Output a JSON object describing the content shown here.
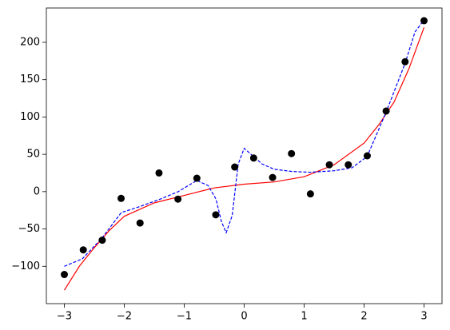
{
  "chart_data": {
    "type": "combo",
    "xlim": [
      -3.3,
      3.3
    ],
    "ylim": [
      -150,
      246
    ],
    "xticks": [
      {
        "value": -3,
        "label": "−3"
      },
      {
        "value": -2,
        "label": "−2"
      },
      {
        "value": -1,
        "label": "−1"
      },
      0,
      1,
      2,
      3
    ],
    "yticks": [
      {
        "value": -100,
        "label": "−100"
      },
      {
        "value": -50,
        "label": "−50"
      },
      0,
      50,
      100,
      150,
      200
    ],
    "series": [
      {
        "type": "scatter",
        "color": "#000000",
        "x": [
          -3,
          -2.684,
          -2.368,
          -2.053,
          -1.737,
          -1.421,
          -1.105,
          -0.789,
          -0.474,
          -0.158,
          0.158,
          0.474,
          0.789,
          1.105,
          1.421,
          1.737,
          2.053,
          2.368,
          2.684,
          3
        ],
        "values": [
          -111,
          -78,
          -65,
          -9,
          -42,
          25,
          -10,
          18,
          -31,
          33,
          45,
          19,
          51,
          -3,
          36,
          36,
          48,
          108,
          174,
          229
        ]
      },
      {
        "type": "line",
        "color": "#ff0000",
        "x": [
          -3,
          -2.75,
          -2.5,
          -2.25,
          -2,
          -1.5,
          -1,
          -0.5,
          0,
          0.5,
          1,
          1.5,
          2,
          2.25,
          2.5,
          2.75,
          3
        ],
        "values": [
          -132,
          -100,
          -75,
          -52,
          -33,
          -15,
          -5,
          5,
          10,
          13,
          20,
          36,
          65,
          90,
          120,
          165,
          220
        ]
      },
      {
        "type": "line",
        "color": "#0000ff",
        "dashed": true,
        "x": [
          -3,
          -2.7,
          -2.37,
          -2.05,
          -1.74,
          -1.4,
          -1.1,
          -0.79,
          -0.6,
          -0.47,
          -0.38,
          -0.3,
          -0.2,
          -0.1,
          0,
          0.1,
          0.3,
          0.5,
          0.8,
          1.1,
          1.5,
          1.8,
          2.05,
          2.2,
          2.37,
          2.68,
          2.85,
          3
        ],
        "values": [
          -100,
          -90,
          -62,
          -28,
          -20,
          -10,
          0,
          15,
          8,
          -10,
          -40,
          -55,
          -32,
          37,
          58,
          51,
          37,
          30,
          27,
          26,
          28,
          32,
          47,
          75,
          107,
          171,
          214,
          230
        ]
      }
    ]
  }
}
